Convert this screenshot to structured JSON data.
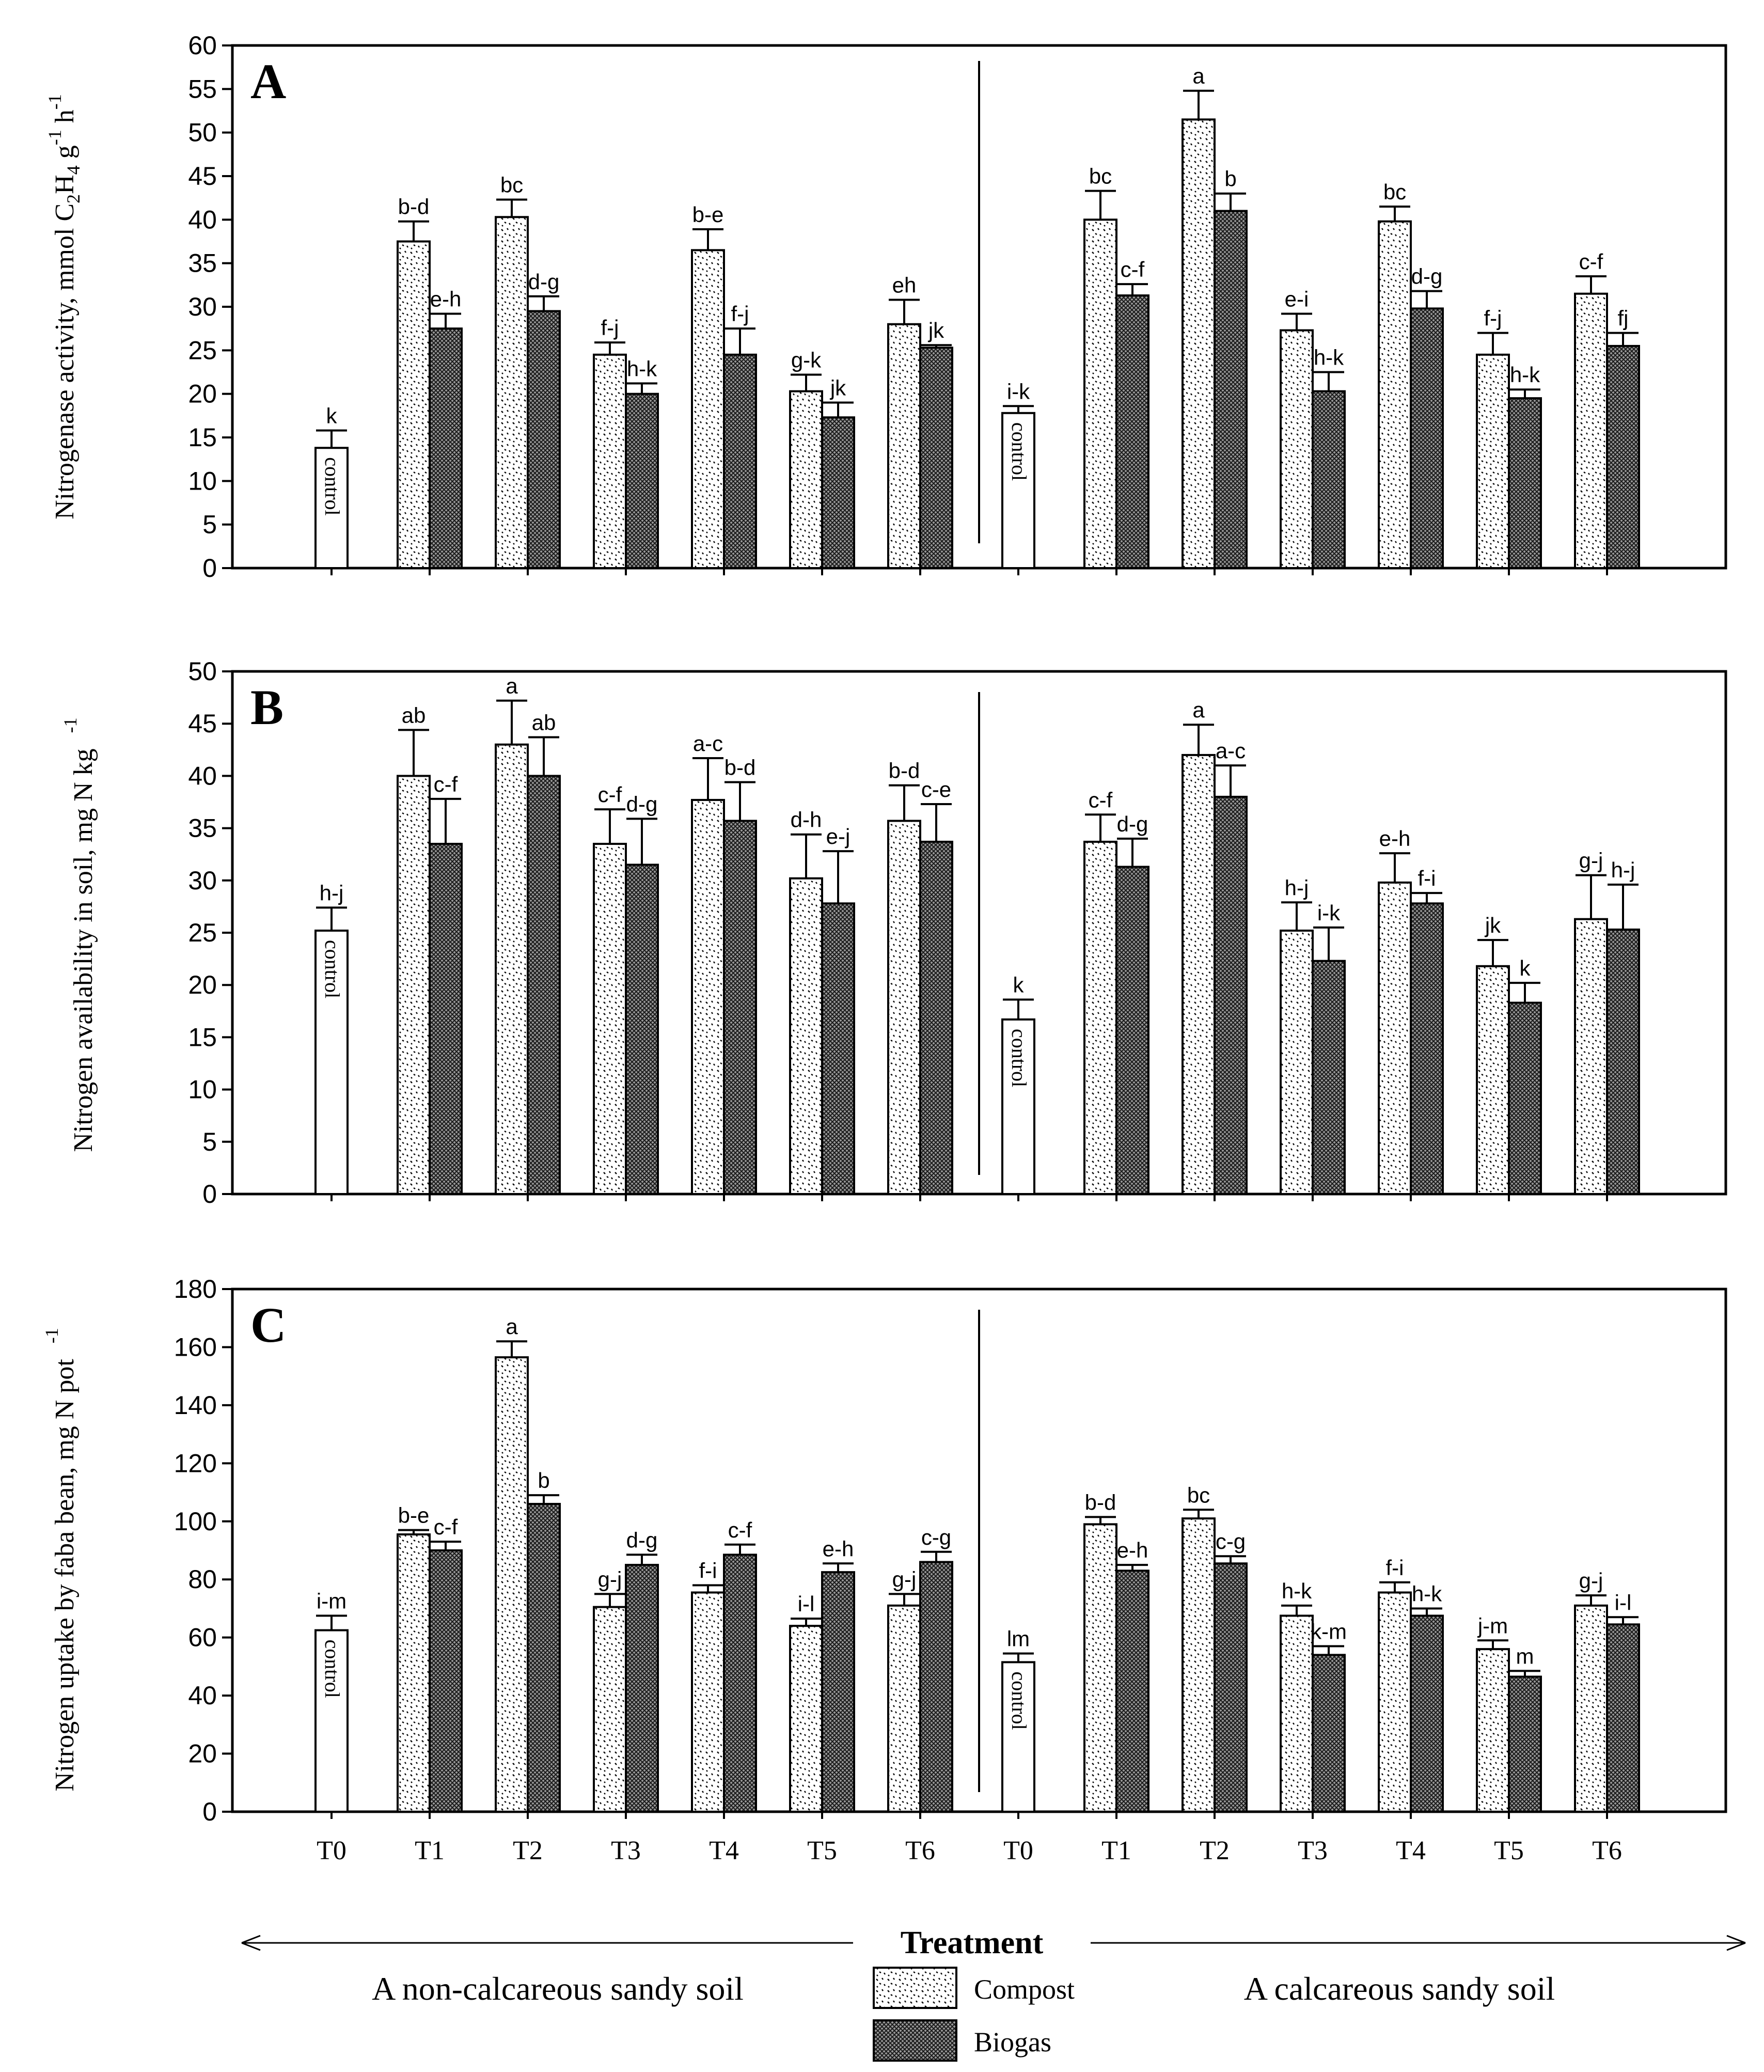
{
  "chart_data": [
    {
      "type": "bar",
      "panel_label": "A",
      "ylabel": "Nitrogenase activity, mmol C",
      "ylabel_sub1": "2",
      "ylabel_mid": "H",
      "ylabel_sub2": "4",
      "ylabel_g": " g",
      "ylabel_sup1": "-1",
      "ylabel_h": " h",
      "ylabel_sup2": "-1",
      "ylim": [
        0,
        60
      ],
      "yticks": [
        0,
        5,
        10,
        15,
        20,
        25,
        30,
        35,
        40,
        45,
        50,
        55,
        60
      ],
      "control_label": "control",
      "groups": [
        {
          "soil": "non-calcareous",
          "control": {
            "value": 13.8,
            "err": 2.0,
            "letter": "k"
          },
          "treatments": [
            {
              "compost": 37.5,
              "compost_err": 2.3,
              "compost_letter": "b-d",
              "biogas": 27.5,
              "biogas_err": 1.7,
              "biogas_letter": "e-h"
            },
            {
              "compost": 40.3,
              "compost_err": 2.0,
              "compost_letter": "bc",
              "biogas": 29.5,
              "biogas_err": 1.7,
              "biogas_letter": "d-g"
            },
            {
              "compost": 24.5,
              "compost_err": 1.4,
              "compost_letter": "f-j",
              "biogas": 20.0,
              "biogas_err": 1.2,
              "biogas_letter": "h-k"
            },
            {
              "compost": 36.5,
              "compost_err": 2.4,
              "compost_letter": "b-e",
              "biogas": 24.5,
              "biogas_err": 3.0,
              "biogas_letter": "f-j"
            },
            {
              "compost": 20.3,
              "compost_err": 1.9,
              "compost_letter": "g-k",
              "biogas": 17.3,
              "biogas_err": 1.7,
              "biogas_letter": "jk"
            },
            {
              "compost": 28.0,
              "compost_err": 2.8,
              "compost_letter": "eh",
              "biogas": 25.3,
              "biogas_err": 0.3,
              "biogas_letter": "jk"
            }
          ]
        },
        {
          "soil": "calcareous",
          "control": {
            "value": 17.8,
            "err": 0.8,
            "letter": "i-k"
          },
          "treatments": [
            {
              "compost": 40.0,
              "compost_err": 3.3,
              "compost_letter": "bc",
              "biogas": 31.3,
              "biogas_err": 1.3,
              "biogas_letter": "c-f"
            },
            {
              "compost": 51.5,
              "compost_err": 3.3,
              "compost_letter": "a",
              "biogas": 41.0,
              "biogas_err": 2.0,
              "biogas_letter": "b"
            },
            {
              "compost": 27.3,
              "compost_err": 1.9,
              "compost_letter": "e-i",
              "biogas": 20.3,
              "biogas_err": 2.2,
              "biogas_letter": "h-k"
            },
            {
              "compost": 39.8,
              "compost_err": 1.7,
              "compost_letter": "bc",
              "biogas": 29.8,
              "biogas_err": 2.0,
              "biogas_letter": "d-g"
            },
            {
              "compost": 24.5,
              "compost_err": 2.5,
              "compost_letter": "f-j",
              "biogas": 19.5,
              "biogas_err": 1.0,
              "biogas_letter": "h-k"
            },
            {
              "compost": 31.5,
              "compost_err": 2.0,
              "compost_letter": "c-f",
              "biogas": 25.5,
              "biogas_err": 1.5,
              "biogas_letter": "fj"
            }
          ]
        }
      ]
    },
    {
      "type": "bar",
      "panel_label": "B",
      "ylabel": "Nitrogen availability in soil, mg N kg",
      "ylabel_sup": "-1",
      "ylim": [
        0,
        50
      ],
      "yticks": [
        0,
        5,
        10,
        15,
        20,
        25,
        30,
        35,
        40,
        45,
        50
      ],
      "control_label": "control",
      "groups": [
        {
          "soil": "non-calcareous",
          "control": {
            "value": 25.2,
            "err": 2.2,
            "letter": "h-j"
          },
          "treatments": [
            {
              "compost": 40.0,
              "compost_err": 4.4,
              "compost_letter": "ab",
              "biogas": 33.5,
              "biogas_err": 4.3,
              "biogas_letter": "c-f"
            },
            {
              "compost": 43.0,
              "compost_err": 4.2,
              "compost_letter": "a",
              "biogas": 40.0,
              "biogas_err": 3.7,
              "biogas_letter": "ab"
            },
            {
              "compost": 33.5,
              "compost_err": 3.3,
              "compost_letter": "c-f",
              "biogas": 31.5,
              "biogas_err": 4.4,
              "biogas_letter": "d-g"
            },
            {
              "compost": 37.7,
              "compost_err": 4.0,
              "compost_letter": "a-c",
              "biogas": 35.7,
              "biogas_err": 3.7,
              "biogas_letter": "b-d"
            },
            {
              "compost": 30.2,
              "compost_err": 4.2,
              "compost_letter": "d-h",
              "biogas": 27.8,
              "biogas_err": 5.0,
              "biogas_letter": "e-j"
            },
            {
              "compost": 35.7,
              "compost_err": 3.4,
              "compost_letter": "b-d",
              "biogas": 33.7,
              "biogas_err": 3.6,
              "biogas_letter": "c-e"
            }
          ]
        },
        {
          "soil": "calcareous",
          "control": {
            "value": 16.7,
            "err": 1.9,
            "letter": "k"
          },
          "treatments": [
            {
              "compost": 33.7,
              "compost_err": 2.6,
              "compost_letter": "c-f",
              "biogas": 31.3,
              "biogas_err": 2.7,
              "biogas_letter": "d-g"
            },
            {
              "compost": 42.0,
              "compost_err": 2.9,
              "compost_letter": "a",
              "biogas": 38.0,
              "biogas_err": 3.0,
              "biogas_letter": "a-c"
            },
            {
              "compost": 25.2,
              "compost_err": 2.7,
              "compost_letter": "h-j",
              "biogas": 22.3,
              "biogas_err": 3.2,
              "biogas_letter": "i-k"
            },
            {
              "compost": 29.8,
              "compost_err": 2.8,
              "compost_letter": "e-h",
              "biogas": 27.8,
              "biogas_err": 1.0,
              "biogas_letter": "f-i"
            },
            {
              "compost": 21.8,
              "compost_err": 2.5,
              "compost_letter": "jk",
              "biogas": 18.3,
              "biogas_err": 1.9,
              "biogas_letter": "k"
            },
            {
              "compost": 26.3,
              "compost_err": 4.2,
              "compost_letter": "g-j",
              "biogas": 25.3,
              "biogas_err": 4.3,
              "biogas_letter": "h-j"
            }
          ]
        }
      ]
    },
    {
      "type": "bar",
      "panel_label": "C",
      "ylabel": "Nitrogen uptake by faba bean, mg N pot",
      "ylabel_sup": "-1",
      "ylim": [
        0,
        180
      ],
      "yticks": [
        0,
        20,
        40,
        60,
        80,
        100,
        120,
        140,
        160,
        180
      ],
      "control_label": "control",
      "groups": [
        {
          "soil": "non-calcareous",
          "control": {
            "value": 62.5,
            "err": 5.0,
            "letter": "i-m"
          },
          "treatments": [
            {
              "compost": 95.5,
              "compost_err": 1.5,
              "compost_letter": "b-e",
              "biogas": 90.0,
              "biogas_err": 3.0,
              "biogas_letter": "c-f"
            },
            {
              "compost": 156.5,
              "compost_err": 5.5,
              "compost_letter": "a",
              "biogas": 106.0,
              "biogas_err": 3.0,
              "biogas_letter": "b"
            },
            {
              "compost": 70.5,
              "compost_err": 4.5,
              "compost_letter": "g-j",
              "biogas": 85.0,
              "biogas_err": 3.5,
              "biogas_letter": "d-g"
            },
            {
              "compost": 75.5,
              "compost_err": 2.5,
              "compost_letter": "f-i",
              "biogas": 88.5,
              "biogas_err": 3.5,
              "biogas_letter": "c-f"
            },
            {
              "compost": 64.0,
              "compost_err": 2.5,
              "compost_letter": "i-l",
              "biogas": 82.5,
              "biogas_err": 3.0,
              "biogas_letter": "e-h"
            },
            {
              "compost": 71.0,
              "compost_err": 4.0,
              "compost_letter": "g-j",
              "biogas": 86.0,
              "biogas_err": 3.5,
              "biogas_letter": "c-g"
            }
          ]
        },
        {
          "soil": "calcareous",
          "control": {
            "value": 51.5,
            "err": 3.0,
            "letter": "lm"
          },
          "treatments": [
            {
              "compost": 99.0,
              "compost_err": 2.5,
              "compost_letter": "b-d",
              "biogas": 83.0,
              "biogas_err": 2.0,
              "biogas_letter": "e-h"
            },
            {
              "compost": 101.0,
              "compost_err": 3.0,
              "compost_letter": "bc",
              "biogas": 85.5,
              "biogas_err": 2.5,
              "biogas_letter": "c-g"
            },
            {
              "compost": 67.5,
              "compost_err": 3.5,
              "compost_letter": "h-k",
              "biogas": 54.0,
              "biogas_err": 3.0,
              "biogas_letter": "k-m"
            },
            {
              "compost": 75.5,
              "compost_err": 3.5,
              "compost_letter": "f-i",
              "biogas": 67.5,
              "biogas_err": 2.5,
              "biogas_letter": "h-k"
            },
            {
              "compost": 56.0,
              "compost_err": 3.0,
              "compost_letter": "j-m",
              "biogas": 46.5,
              "biogas_err": 2.0,
              "biogas_letter": "m"
            },
            {
              "compost": 71.0,
              "compost_err": 3.5,
              "compost_letter": "g-j",
              "biogas": 64.5,
              "biogas_err": 2.5,
              "biogas_letter": "i-l"
            }
          ]
        }
      ]
    }
  ],
  "categories": [
    "T0",
    "T1",
    "T2",
    "T3",
    "T4",
    "T5",
    "T6",
    "T0",
    "T1",
    "T2",
    "T3",
    "T4",
    "T5",
    "T6"
  ],
  "xlabel": "Treatment",
  "soil_left": "A non-calcareous sandy soil",
  "soil_right": "A calcareous sandy soil",
  "legend": [
    {
      "name": "Compost",
      "pattern": "dots"
    },
    {
      "name": "Biogas",
      "pattern": "crosshatch"
    }
  ]
}
